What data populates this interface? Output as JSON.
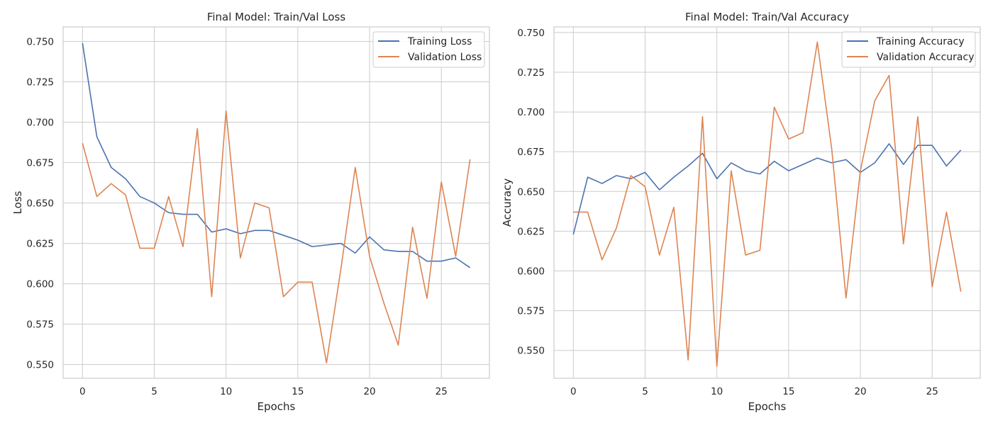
{
  "colors": {
    "training": "#4c72b0",
    "validation": "#dd8452",
    "grid": "#cccccc"
  },
  "chart_data": [
    {
      "type": "line",
      "title": "Final Model:  Train/Val Loss",
      "xlabel": "Epochs",
      "ylabel": "Loss",
      "xlim": [
        -1.35,
        28.35
      ],
      "ylim": [
        0.5415,
        0.759
      ],
      "xticks": [
        0,
        5,
        10,
        15,
        20,
        25
      ],
      "yticks": [
        0.55,
        0.575,
        0.6,
        0.625,
        0.65,
        0.675,
        0.7,
        0.725,
        0.75
      ],
      "ytick_labels": [
        "0.550",
        "0.575",
        "0.600",
        "0.625",
        "0.650",
        "0.675",
        "0.700",
        "0.725",
        "0.750"
      ],
      "grid": true,
      "legend": "upper right",
      "x": [
        0,
        1,
        2,
        3,
        4,
        5,
        6,
        7,
        8,
        9,
        10,
        11,
        12,
        13,
        14,
        15,
        16,
        17,
        18,
        19,
        20,
        21,
        22,
        23,
        24,
        25,
        26,
        27
      ],
      "series": [
        {
          "name": "Training Loss",
          "color": "#4c72b0",
          "values": [
            0.749,
            0.691,
            0.672,
            0.665,
            0.654,
            0.65,
            0.644,
            0.643,
            0.643,
            0.632,
            0.634,
            0.631,
            0.633,
            0.633,
            0.63,
            0.627,
            0.623,
            0.624,
            0.625,
            0.619,
            0.629,
            0.621,
            0.62,
            0.62,
            0.614,
            0.614,
            0.616,
            0.61
          ]
        },
        {
          "name": "Validation Loss",
          "color": "#dd8452",
          "values": [
            0.687,
            0.654,
            0.662,
            0.655,
            0.622,
            0.622,
            0.654,
            0.623,
            0.696,
            0.592,
            0.707,
            0.616,
            0.65,
            0.647,
            0.592,
            0.601,
            0.601,
            0.551,
            0.609,
            0.672,
            0.617,
            0.588,
            0.562,
            0.635,
            0.591,
            0.663,
            0.617,
            0.677
          ]
        }
      ]
    },
    {
      "type": "line",
      "title": "Final Model:  Train/Val Accuracy",
      "xlabel": "Epochs",
      "ylabel": "Accuracy",
      "xlim": [
        -1.35,
        28.35
      ],
      "ylim": [
        0.5325,
        0.7535
      ],
      "xticks": [
        0,
        5,
        10,
        15,
        20,
        25
      ],
      "yticks": [
        0.55,
        0.575,
        0.6,
        0.625,
        0.65,
        0.675,
        0.7,
        0.725,
        0.75
      ],
      "ytick_labels": [
        "0.550",
        "0.575",
        "0.600",
        "0.625",
        "0.650",
        "0.675",
        "0.700",
        "0.725",
        "0.750"
      ],
      "grid": true,
      "legend": "upper right",
      "x": [
        0,
        1,
        2,
        3,
        4,
        5,
        6,
        7,
        8,
        9,
        10,
        11,
        12,
        13,
        14,
        15,
        16,
        17,
        18,
        19,
        20,
        21,
        22,
        23,
        24,
        25,
        26,
        27
      ],
      "series": [
        {
          "name": "Training Accuracy",
          "color": "#4c72b0",
          "values": [
            0.623,
            0.659,
            0.655,
            0.66,
            0.658,
            0.662,
            0.651,
            0.659,
            0.666,
            0.674,
            0.658,
            0.668,
            0.663,
            0.661,
            0.669,
            0.663,
            0.667,
            0.671,
            0.668,
            0.67,
            0.662,
            0.668,
            0.68,
            0.667,
            0.679,
            0.679,
            0.666,
            0.676
          ]
        },
        {
          "name": "Validation Accuracy",
          "color": "#dd8452",
          "values": [
            0.637,
            0.637,
            0.607,
            0.627,
            0.66,
            0.653,
            0.61,
            0.64,
            0.544,
            0.697,
            0.54,
            0.663,
            0.61,
            0.613,
            0.703,
            0.683,
            0.687,
            0.744,
            0.677,
            0.583,
            0.663,
            0.707,
            0.723,
            0.617,
            0.697,
            0.59,
            0.637,
            0.587
          ]
        }
      ]
    }
  ]
}
